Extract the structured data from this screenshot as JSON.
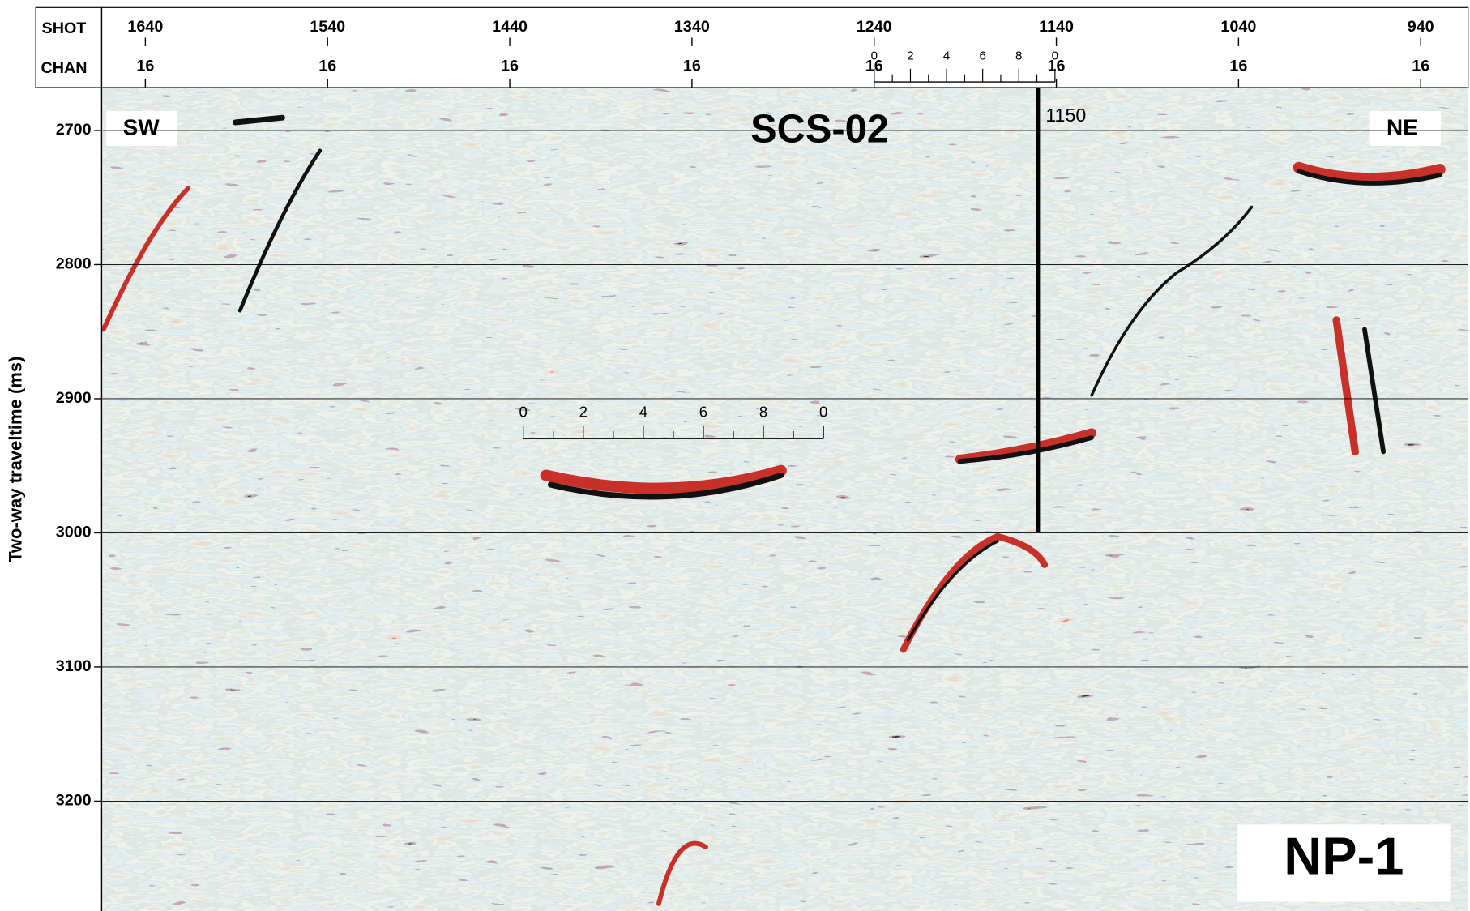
{
  "chart_data": {
    "type": "seismic",
    "title": "SCS-02",
    "panel_label": "NP-1",
    "direction_labels": [
      "SW",
      "NE"
    ],
    "x_header_labels": [
      "SHOT",
      "CHAN"
    ],
    "ylabel": "Two-way traveltime (ms)",
    "xlim": [
      1664,
      914
    ],
    "xticks": [
      1640,
      1540,
      1440,
      1340,
      1240,
      1140,
      1040,
      940
    ],
    "channels": [
      16,
      16,
      16,
      16,
      16,
      16,
      16,
      16
    ],
    "ylim": [
      2668,
      3282
    ],
    "yticks": [
      2700,
      2800,
      2900,
      3000,
      3100,
      3200
    ],
    "grid": true,
    "marker": {
      "shot": 1150,
      "time_end": 3000
    },
    "scale_bar": {
      "labels": [
        0,
        2,
        4,
        6,
        8,
        0
      ]
    }
  }
}
